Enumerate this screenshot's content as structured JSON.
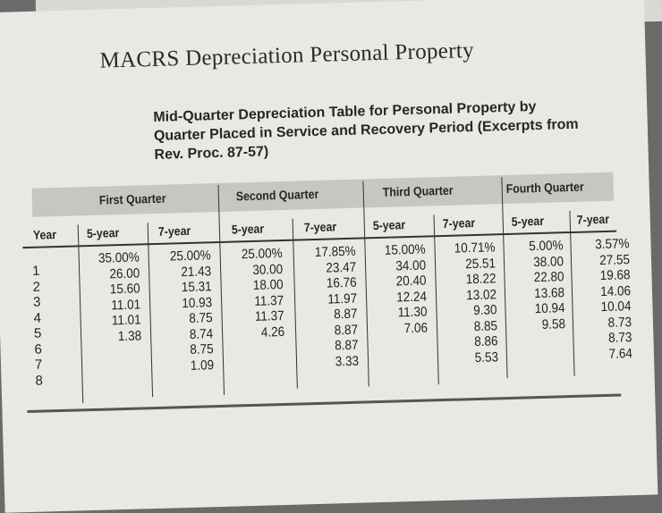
{
  "title": "MACRS Depreciation Personal Property",
  "subtitle": "Mid-Quarter Depreciation Table for Personal Property by Quarter Placed in Service and Recovery Period (Excerpts from Rev. Proc. 87-57)",
  "table": {
    "quarters": [
      "First Quarter",
      "Second Quarter",
      "Third Quarter",
      "Fourth Quarter"
    ],
    "year_header": "Year",
    "column_headers": [
      "5-year",
      "7-year",
      "5-year",
      "7-year",
      "5-year",
      "7-year",
      "5-year",
      "7-year"
    ],
    "years": [
      "1",
      "2",
      "3",
      "4",
      "5",
      "6",
      "7",
      "8"
    ],
    "columns": [
      [
        "35.00%",
        "26.00",
        "15.60",
        "11.01",
        "11.01",
        "1.38"
      ],
      [
        "25.00%",
        "21.43",
        "15.31",
        "10.93",
        "8.75",
        "8.74",
        "8.75",
        "1.09"
      ],
      [
        "25.00%",
        "30.00",
        "18.00",
        "11.37",
        "11.37",
        "4.26"
      ],
      [
        "17.85%",
        "23.47",
        "16.76",
        "11.97",
        "8.87",
        "8.87",
        "8.87",
        "3.33"
      ],
      [
        "15.00%",
        "34.00",
        "20.40",
        "12.24",
        "11.30",
        "7.06"
      ],
      [
        "10.71%",
        "25.51",
        "18.22",
        "13.02",
        "9.30",
        "8.85",
        "8.86",
        "5.53"
      ],
      [
        "5.00%",
        "38.00",
        "22.80",
        "13.68",
        "10.94",
        "9.58"
      ],
      [
        "3.57%",
        "27.55",
        "19.68",
        "14.06",
        "10.04",
        "8.73",
        "8.73",
        "7.64"
      ]
    ]
  }
}
